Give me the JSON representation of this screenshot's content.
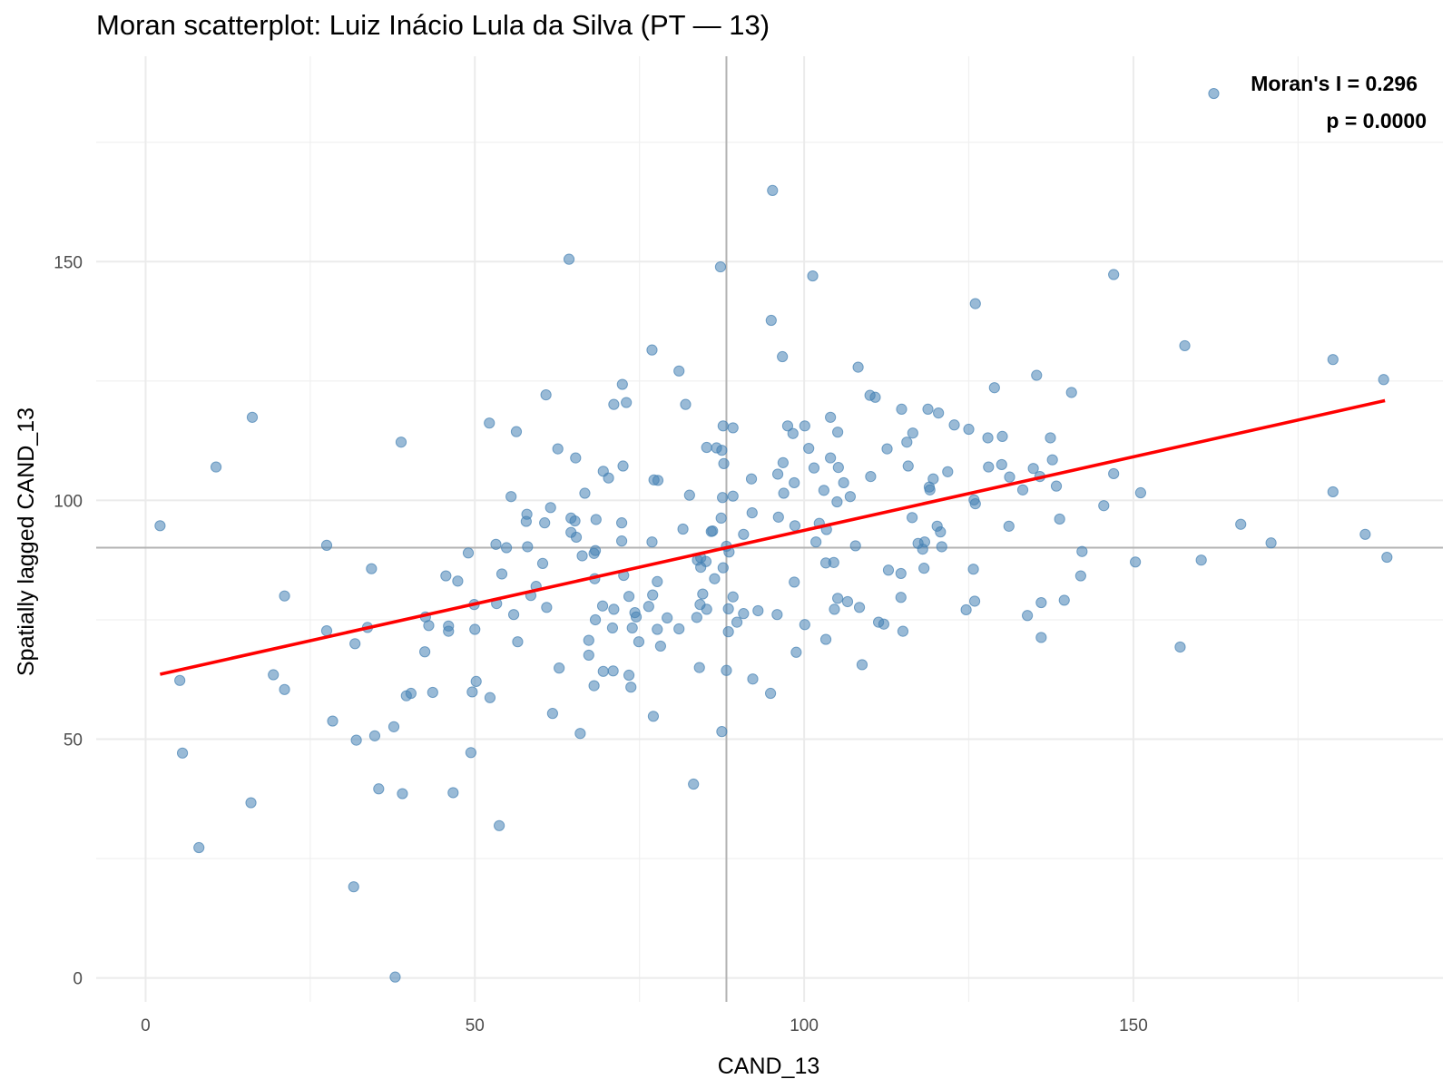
{
  "chart_data": {
    "type": "scatter",
    "title": "Moran scatterplot: Luiz Inácio Lula da Silva (PT — 13)",
    "xlabel": "CAND_13",
    "ylabel": "Spatially lagged CAND_13",
    "xlim": [
      -7.5,
      197
    ],
    "ylim": [
      -5,
      193
    ],
    "x_ticks": [
      0,
      50,
      100,
      150
    ],
    "y_ticks": [
      0,
      50,
      100,
      150
    ],
    "x_minor": [
      25,
      75,
      125,
      175
    ],
    "y_minor": [
      25,
      75,
      125,
      175
    ],
    "grid": true,
    "mean_x": 88.2,
    "mean_y": 90.1,
    "fit_line": {
      "x": [
        2.2,
        188.2
      ],
      "y": [
        63.6,
        120.9
      ]
    },
    "point_color": "#4682b4",
    "line_color": "#ff0000",
    "annotations": {
      "moran": "Moran's I = 0.296",
      "p_value": "p = 0.0000"
    },
    "points": [
      [
        162.2,
        185.2
      ],
      [
        95.2,
        164.9
      ],
      [
        64.3,
        150.5
      ],
      [
        87.3,
        148.9
      ],
      [
        101.3,
        147.0
      ],
      [
        147.0,
        147.3
      ],
      [
        126.0,
        141.2
      ],
      [
        95.0,
        137.7
      ],
      [
        157.8,
        132.4
      ],
      [
        76.9,
        131.5
      ],
      [
        96.7,
        130.1
      ],
      [
        180.3,
        129.5
      ],
      [
        81.0,
        127.1
      ],
      [
        108.2,
        127.9
      ],
      [
        135.3,
        126.2
      ],
      [
        188.0,
        125.3
      ],
      [
        72.4,
        124.3
      ],
      [
        128.9,
        123.6
      ],
      [
        140.6,
        122.6
      ],
      [
        60.8,
        122.1
      ],
      [
        110.0,
        122.0
      ],
      [
        110.8,
        121.6
      ],
      [
        73.0,
        120.5
      ],
      [
        71.1,
        120.1
      ],
      [
        82.0,
        120.1
      ],
      [
        114.8,
        119.1
      ],
      [
        118.8,
        119.1
      ],
      [
        120.4,
        118.3
      ],
      [
        16.2,
        117.4
      ],
      [
        104.0,
        117.4
      ],
      [
        52.2,
        116.2
      ],
      [
        87.7,
        115.6
      ],
      [
        97.5,
        115.6
      ],
      [
        100.1,
        115.6
      ],
      [
        89.2,
        115.2
      ],
      [
        122.8,
        115.8
      ],
      [
        125.0,
        114.9
      ],
      [
        56.3,
        114.4
      ],
      [
        98.3,
        114.0
      ],
      [
        105.1,
        114.3
      ],
      [
        116.5,
        114.1
      ],
      [
        127.9,
        113.1
      ],
      [
        130.1,
        113.4
      ],
      [
        137.4,
        113.1
      ],
      [
        38.8,
        112.2
      ],
      [
        115.6,
        112.2
      ],
      [
        62.6,
        110.8
      ],
      [
        85.2,
        111.1
      ],
      [
        86.7,
        111.0
      ],
      [
        87.5,
        110.5
      ],
      [
        100.7,
        110.9
      ],
      [
        112.6,
        110.8
      ],
      [
        65.3,
        108.9
      ],
      [
        104.0,
        108.9
      ],
      [
        137.7,
        108.5
      ],
      [
        87.8,
        107.7
      ],
      [
        96.8,
        107.9
      ],
      [
        101.5,
        106.8
      ],
      [
        105.2,
        106.9
      ],
      [
        115.8,
        107.2
      ],
      [
        128.0,
        107.0
      ],
      [
        130.0,
        107.5
      ],
      [
        134.8,
        106.7
      ],
      [
        10.7,
        107.0
      ],
      [
        69.5,
        106.1
      ],
      [
        72.5,
        107.2
      ],
      [
        96.0,
        105.5
      ],
      [
        110.1,
        105.0
      ],
      [
        121.8,
        106.0
      ],
      [
        131.2,
        104.9
      ],
      [
        135.8,
        105.0
      ],
      [
        147.0,
        105.6
      ],
      [
        70.3,
        104.7
      ],
      [
        77.2,
        104.3
      ],
      [
        77.8,
        104.2
      ],
      [
        92.0,
        104.5
      ],
      [
        98.5,
        103.7
      ],
      [
        106.0,
        103.7
      ],
      [
        119.6,
        104.5
      ],
      [
        138.3,
        103.0
      ],
      [
        66.7,
        101.5
      ],
      [
        82.6,
        101.1
      ],
      [
        87.6,
        100.6
      ],
      [
        89.2,
        100.9
      ],
      [
        96.9,
        101.5
      ],
      [
        103.0,
        102.1
      ],
      [
        105.0,
        99.7
      ],
      [
        107.0,
        100.8
      ],
      [
        125.8,
        100.1
      ],
      [
        133.2,
        102.2
      ],
      [
        151.1,
        101.6
      ],
      [
        180.3,
        101.8
      ],
      [
        55.5,
        100.8
      ],
      [
        61.5,
        98.5
      ],
      [
        92.1,
        97.4
      ],
      [
        119.0,
        102.8
      ],
      [
        119.1,
        102.2
      ],
      [
        126.0,
        99.3
      ],
      [
        145.5,
        98.9
      ],
      [
        57.9,
        97.1
      ],
      [
        64.6,
        96.3
      ],
      [
        68.4,
        96.0
      ],
      [
        87.4,
        96.3
      ],
      [
        96.1,
        96.5
      ],
      [
        116.4,
        96.4
      ],
      [
        138.8,
        96.1
      ],
      [
        2.2,
        94.7
      ],
      [
        60.6,
        95.3
      ],
      [
        72.3,
        95.3
      ],
      [
        98.6,
        94.7
      ],
      [
        102.3,
        95.2
      ],
      [
        103.4,
        93.9
      ],
      [
        120.2,
        94.6
      ],
      [
        131.1,
        94.6
      ],
      [
        166.3,
        95.0
      ],
      [
        57.8,
        95.6
      ],
      [
        65.2,
        95.7
      ],
      [
        86.1,
        93.6
      ],
      [
        90.8,
        92.9
      ],
      [
        101.8,
        91.3
      ],
      [
        107.8,
        90.5
      ],
      [
        118.3,
        91.3
      ],
      [
        120.9,
        90.3
      ],
      [
        170.9,
        91.1
      ],
      [
        185.2,
        92.9
      ],
      [
        64.6,
        93.3
      ],
      [
        65.4,
        92.3
      ],
      [
        72.3,
        91.5
      ],
      [
        76.9,
        91.3
      ],
      [
        81.6,
        94.0
      ],
      [
        85.9,
        93.5
      ],
      [
        117.3,
        91.0
      ],
      [
        120.7,
        93.4
      ],
      [
        27.5,
        90.6
      ],
      [
        58.0,
        90.3
      ],
      [
        68.3,
        89.5
      ],
      [
        88.2,
        90.4
      ],
      [
        118.0,
        89.8
      ],
      [
        49.0,
        89.0
      ],
      [
        54.8,
        90.1
      ],
      [
        66.3,
        88.4
      ],
      [
        68.1,
        88.9
      ],
      [
        84.3,
        88.0
      ],
      [
        88.6,
        89.2
      ],
      [
        142.2,
        89.3
      ],
      [
        160.3,
        87.5
      ],
      [
        188.5,
        88.1
      ],
      [
        53.2,
        90.8
      ],
      [
        83.8,
        87.5
      ],
      [
        85.1,
        87.2
      ],
      [
        103.3,
        86.9
      ],
      [
        104.5,
        87.0
      ],
      [
        150.3,
        87.1
      ],
      [
        34.3,
        85.7
      ],
      [
        60.3,
        86.8
      ],
      [
        84.3,
        86.0
      ],
      [
        87.7,
        85.9
      ],
      [
        112.8,
        85.4
      ],
      [
        114.7,
        84.7
      ],
      [
        118.2,
        85.8
      ],
      [
        125.7,
        85.6
      ],
      [
        45.6,
        84.2
      ],
      [
        54.1,
        84.6
      ],
      [
        68.2,
        83.6
      ],
      [
        72.6,
        84.3
      ],
      [
        77.7,
        83.0
      ],
      [
        86.4,
        83.6
      ],
      [
        98.5,
        82.9
      ],
      [
        142.0,
        84.2
      ],
      [
        47.4,
        83.1
      ],
      [
        59.3,
        82.0
      ],
      [
        73.4,
        79.9
      ],
      [
        77.0,
        80.2
      ],
      [
        84.6,
        80.4
      ],
      [
        89.2,
        79.8
      ],
      [
        105.1,
        79.5
      ],
      [
        114.7,
        79.7
      ],
      [
        21.1,
        80.0
      ],
      [
        58.5,
        80.1
      ],
      [
        69.4,
        77.9
      ],
      [
        71.1,
        77.2
      ],
      [
        76.4,
        77.8
      ],
      [
        85.2,
        77.2
      ],
      [
        88.5,
        77.3
      ],
      [
        106.6,
        78.8
      ],
      [
        108.4,
        77.6
      ],
      [
        125.9,
        78.9
      ],
      [
        136.0,
        78.6
      ],
      [
        139.5,
        79.1
      ],
      [
        49.9,
        78.2
      ],
      [
        53.3,
        78.4
      ],
      [
        60.9,
        77.6
      ],
      [
        74.3,
        76.5
      ],
      [
        90.8,
        76.3
      ],
      [
        93.0,
        76.9
      ],
      [
        95.9,
        76.1
      ],
      [
        104.6,
        77.2
      ],
      [
        124.6,
        77.1
      ],
      [
        133.9,
        75.9
      ],
      [
        42.5,
        75.6
      ],
      [
        46.0,
        73.7
      ],
      [
        50.0,
        73.0
      ],
      [
        55.9,
        76.1
      ],
      [
        68.3,
        75.0
      ],
      [
        74.5,
        75.6
      ],
      [
        79.2,
        75.4
      ],
      [
        83.7,
        75.5
      ],
      [
        89.8,
        74.5
      ],
      [
        111.3,
        74.5
      ],
      [
        112.1,
        74.1
      ],
      [
        27.5,
        72.7
      ],
      [
        33.7,
        73.4
      ],
      [
        43.0,
        73.8
      ],
      [
        46.0,
        72.6
      ],
      [
        70.9,
        73.3
      ],
      [
        73.9,
        73.3
      ],
      [
        77.7,
        73.0
      ],
      [
        81.0,
        73.1
      ],
      [
        84.2,
        78.2
      ],
      [
        88.5,
        72.5
      ],
      [
        100.1,
        74.0
      ],
      [
        115.0,
        72.6
      ],
      [
        31.8,
        70.0
      ],
      [
        56.5,
        70.4
      ],
      [
        67.3,
        70.7
      ],
      [
        74.9,
        70.4
      ],
      [
        78.2,
        69.5
      ],
      [
        103.3,
        70.9
      ],
      [
        136.0,
        71.3
      ],
      [
        157.1,
        69.3
      ],
      [
        42.4,
        68.3
      ],
      [
        67.3,
        67.6
      ],
      [
        98.8,
        68.2
      ],
      [
        19.4,
        63.5
      ],
      [
        62.8,
        64.9
      ],
      [
        69.5,
        64.2
      ],
      [
        71.0,
        64.3
      ],
      [
        73.4,
        63.4
      ],
      [
        84.1,
        65.0
      ],
      [
        88.2,
        64.4
      ],
      [
        108.8,
        65.6
      ],
      [
        5.2,
        62.3
      ],
      [
        50.2,
        62.1
      ],
      [
        68.1,
        61.2
      ],
      [
        73.7,
        60.9
      ],
      [
        92.2,
        62.6
      ],
      [
        21.1,
        60.4
      ],
      [
        40.3,
        59.6
      ],
      [
        43.6,
        59.8
      ],
      [
        49.6,
        59.9
      ],
      [
        52.3,
        58.7
      ],
      [
        94.9,
        59.6
      ],
      [
        39.6,
        59.1
      ],
      [
        61.8,
        55.4
      ],
      [
        77.1,
        54.8
      ],
      [
        28.4,
        53.8
      ],
      [
        37.7,
        52.6
      ],
      [
        66.0,
        51.2
      ],
      [
        87.5,
        51.6
      ],
      [
        32.0,
        49.8
      ],
      [
        34.8,
        50.7
      ],
      [
        5.6,
        47.1
      ],
      [
        49.4,
        47.2
      ],
      [
        83.2,
        40.6
      ],
      [
        35.4,
        39.6
      ],
      [
        39.0,
        38.6
      ],
      [
        46.7,
        38.8
      ],
      [
        16.0,
        36.7
      ],
      [
        53.7,
        31.9
      ],
      [
        8.1,
        27.3
      ],
      [
        31.6,
        19.1
      ],
      [
        37.9,
        0.2
      ]
    ]
  }
}
